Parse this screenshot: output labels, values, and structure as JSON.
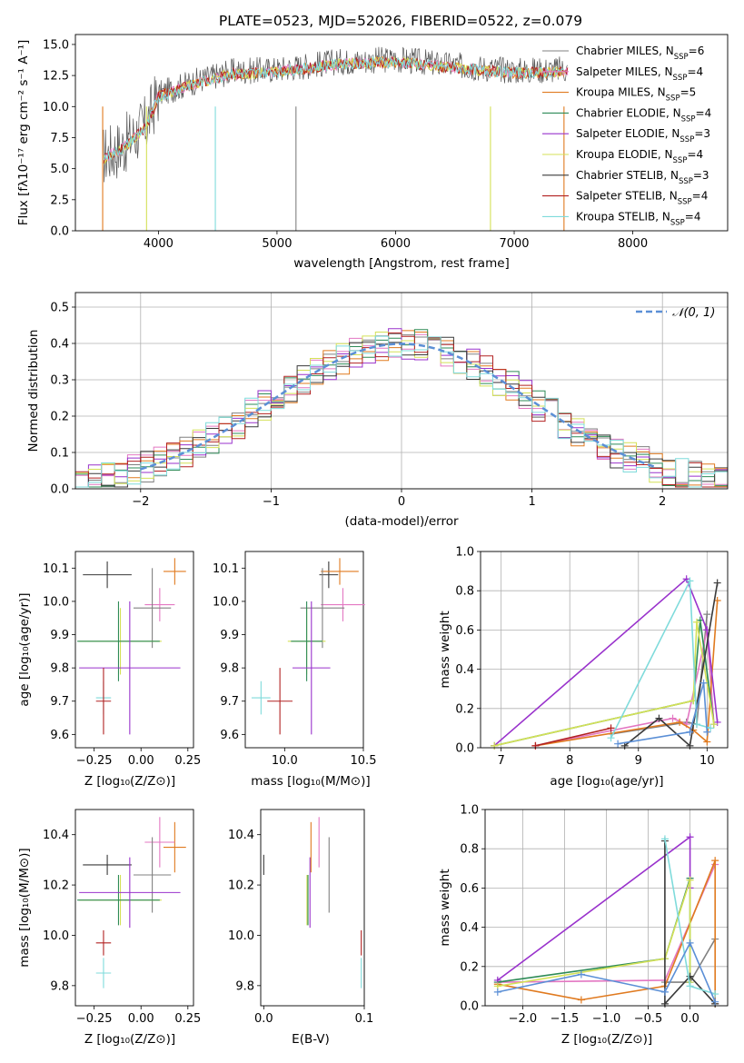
{
  "colors": {
    "Chabrier MILES": "#808080",
    "Salpeter MILES": "#e377c2",
    "Kroupa MILES": "#e07a1f",
    "Chabrier ELODIE": "#2e8b57",
    "Salpeter ELODIE": "#9932cc",
    "Kroupa ELODIE": "#d4e157",
    "Chabrier STELIB": "#3a3a3a",
    "Salpeter STELIB": "#b22222",
    "Kroupa STELIB": "#7fdbdb",
    "normal": "#5b8fd6",
    "blue": "#5b8fd6",
    "yellowgreen": "#b5e03a"
  },
  "chart_data": [
    {
      "id": "spectrum",
      "type": "line",
      "title": "PLATE=0523, MJD=52026, FIBERID=0522, z=0.079",
      "xlabel": "wavelength [Angstrom, rest frame]",
      "ylabel": "Flux [fλ10⁻¹⁷ erg cm⁻² s⁻¹ A⁻¹]",
      "xlim": [
        3300,
        8800
      ],
      "ylim": [
        0,
        15.8
      ],
      "xticks": [
        "4000",
        "5000",
        "6000",
        "7000",
        "8000"
      ],
      "yticks": [
        "0.0",
        "2.5",
        "5.0",
        "7.5",
        "10.0",
        "12.5",
        "15.0"
      ],
      "grid": false,
      "legend_position": "top-right",
      "legend": [
        {
          "name": "Chabrier MILES",
          "suffix": "6"
        },
        {
          "name": "Salpeter MILES",
          "suffix": "4"
        },
        {
          "name": "Kroupa MILES",
          "suffix": "5"
        },
        {
          "name": "Chabrier ELODIE",
          "suffix": "4"
        },
        {
          "name": "Salpeter ELODIE",
          "suffix": "3"
        },
        {
          "name": "Kroupa ELODIE",
          "suffix": "4"
        },
        {
          "name": "Chabrier STELIB",
          "suffix": "3"
        },
        {
          "name": "Salpeter STELIB",
          "suffix": "4"
        },
        {
          "name": "Kroupa STELIB",
          "suffix": "4"
        }
      ],
      "continuum": [
        [
          3530,
          6.0
        ],
        [
          3700,
          6.8
        ],
        [
          3900,
          8.6
        ],
        [
          4000,
          11.0
        ],
        [
          4300,
          12.0
        ],
        [
          4600,
          12.8
        ],
        [
          5000,
          13.0
        ],
        [
          5500,
          13.6
        ],
        [
          6000,
          13.8
        ],
        [
          6500,
          13.3
        ],
        [
          7000,
          12.9
        ],
        [
          7500,
          13.0
        ],
        [
          8000,
          12.8
        ],
        [
          8500,
          12.5
        ],
        [
          8700,
          12.4
        ]
      ],
      "data_range": [
        3530,
        8700
      ]
    },
    {
      "id": "residuals",
      "type": "histogram",
      "xlabel": "(data-model)/error",
      "ylabel": "Normed distribution",
      "xlim": [
        -2.5,
        2.5
      ],
      "ylim": [
        0,
        0.54
      ],
      "xticks": [
        "−2",
        "−1",
        "0",
        "1",
        "2"
      ],
      "yticks": [
        "0.0",
        "0.1",
        "0.2",
        "0.3",
        "0.4",
        "0.5"
      ],
      "grid": true,
      "legend_label": "𝒩(0, 1)",
      "legend_position": "top-right",
      "bin_width": 0.1,
      "reference_curve": "normal pdf, mean 0, sigma 1"
    },
    {
      "id": "age_vs_Z",
      "type": "errorbar",
      "xlabel": "Z [log₁₀(Z/Z⊙)]",
      "ylabel": "age  [log₁₀(age/yr)]",
      "xlim": [
        -0.35,
        0.28
      ],
      "ylim": [
        9.56,
        10.15
      ],
      "xticks": [
        "−0.25",
        "0.00",
        "0.25"
      ],
      "yticks": [
        "9.6",
        "9.7",
        "9.8",
        "9.9",
        "10.0",
        "10.1"
      ],
      "points": [
        {
          "model": "Chabrier STELIB",
          "x": -0.18,
          "xerr": 0.13,
          "y": 10.08,
          "yerr": 0.04
        },
        {
          "model": "Kroupa MILES",
          "x": 0.18,
          "xerr": 0.06,
          "y": 10.09,
          "yerr": 0.04
        },
        {
          "model": "Salpeter MILES",
          "x": 0.1,
          "xerr": 0.08,
          "y": 9.99,
          "yerr": 0.05
        },
        {
          "model": "Chabrier MILES",
          "x": 0.06,
          "xerr": 0.1,
          "y": 9.98,
          "yerr": 0.12
        },
        {
          "model": "Kroupa ELODIE",
          "x": -0.11,
          "xerr": 0.22,
          "y": 9.88,
          "yerr": 0.1
        },
        {
          "model": "Chabrier ELODIE",
          "x": -0.12,
          "xerr": 0.22,
          "y": 9.88,
          "yerr": 0.12
        },
        {
          "model": "Salpeter ELODIE",
          "x": -0.06,
          "xerr": 0.27,
          "y": 9.8,
          "yerr": 0.2
        },
        {
          "model": "Kroupa STELIB",
          "x": -0.2,
          "xerr": 0.04,
          "y": 9.71,
          "yerr": 0.05
        },
        {
          "model": "Salpeter STELIB",
          "x": -0.2,
          "xerr": 0.04,
          "y": 9.7,
          "yerr": 0.1
        }
      ]
    },
    {
      "id": "age_vs_mass",
      "type": "errorbar",
      "xlabel": "mass [log₁₀(M/M⊙)]",
      "ylabel": "",
      "xlim": [
        9.75,
        10.5
      ],
      "ylim": [
        9.56,
        10.15
      ],
      "xticks": [
        "10.0",
        "10.5"
      ],
      "yticks": [
        "9.6",
        "9.7",
        "9.8",
        "9.9",
        "10.0",
        "10.1"
      ],
      "points": [
        {
          "model": "Chabrier STELIB",
          "x": 10.28,
          "xerr": 0.06,
          "y": 10.08,
          "yerr": 0.04
        },
        {
          "model": "Kroupa MILES",
          "x": 10.35,
          "xerr": 0.12,
          "y": 10.09,
          "yerr": 0.04
        },
        {
          "model": "Salpeter MILES",
          "x": 10.37,
          "xerr": 0.14,
          "y": 9.99,
          "yerr": 0.05
        },
        {
          "model": "Chabrier MILES",
          "x": 10.24,
          "xerr": 0.14,
          "y": 9.98,
          "yerr": 0.12
        },
        {
          "model": "Kroupa ELODIE",
          "x": 10.14,
          "xerr": 0.12,
          "y": 9.88,
          "yerr": 0.1
        },
        {
          "model": "Chabrier ELODIE",
          "x": 10.14,
          "xerr": 0.1,
          "y": 9.88,
          "yerr": 0.12
        },
        {
          "model": "Salpeter ELODIE",
          "x": 10.17,
          "xerr": 0.12,
          "y": 9.8,
          "yerr": 0.2
        },
        {
          "model": "Kroupa STELIB",
          "x": 9.85,
          "xerr": 0.06,
          "y": 9.71,
          "yerr": 0.05
        },
        {
          "model": "Salpeter STELIB",
          "x": 9.97,
          "xerr": 0.08,
          "y": 9.7,
          "yerr": 0.1
        }
      ]
    },
    {
      "id": "weight_vs_age",
      "type": "line",
      "xlabel": "age  [log₁₀(age/yr)]",
      "ylabel": "mass weight",
      "xlim": [
        6.7,
        10.3
      ],
      "ylim": [
        0,
        1
      ],
      "xticks": [
        "7",
        "8",
        "9",
        "10"
      ],
      "yticks": [
        "0.0",
        "0.2",
        "0.4",
        "0.6",
        "0.8",
        "1.0"
      ],
      "grid": true,
      "series": [
        {
          "model": "Chabrier MILES",
          "x": [
            8.6,
            9.7,
            9.85,
            10.0
          ],
          "y": [
            0.07,
            0.13,
            0.12,
            0.68
          ]
        },
        {
          "model": "Salpeter MILES",
          "x": [
            7.5,
            9.5,
            9.7,
            10.0,
            10.1
          ],
          "y": [
            0.01,
            0.15,
            0.12,
            0.6,
            0.12
          ]
        },
        {
          "model": "Kroupa MILES",
          "x": [
            7.5,
            9.6,
            9.8,
            10.0,
            10.15
          ],
          "y": [
            0.01,
            0.13,
            0.09,
            0.03,
            0.75
          ]
        },
        {
          "model": "Chabrier ELODIE",
          "x": [
            6.9,
            9.8,
            9.9,
            10.1
          ],
          "y": [
            0.01,
            0.24,
            0.65,
            0.12
          ]
        },
        {
          "model": "Salpeter ELODIE",
          "x": [
            6.9,
            9.7,
            10.0,
            10.15
          ],
          "y": [
            0.01,
            0.86,
            0.6,
            0.13
          ]
        },
        {
          "model": "Kroupa ELODIE",
          "x": [
            6.9,
            9.8,
            9.85,
            10.1
          ],
          "y": [
            0.01,
            0.24,
            0.64,
            0.12
          ]
        },
        {
          "model": "Chabrier STELIB",
          "x": [
            8.8,
            9.3,
            9.75,
            10.15
          ],
          "y": [
            0.01,
            0.15,
            0.01,
            0.84
          ]
        },
        {
          "model": "Salpeter STELIB",
          "x": [
            7.5,
            8.6
          ],
          "y": [
            0.01,
            0.1
          ]
        },
        {
          "model": "Kroupa STELIB",
          "x": [
            8.6,
            9.75,
            9.85,
            10.05
          ],
          "y": [
            0.05,
            0.85,
            0.12,
            0.1
          ]
        },
        {
          "model": "blue",
          "x": [
            8.7,
            9.75,
            9.95,
            10.0
          ],
          "y": [
            0.02,
            0.08,
            0.33,
            0.08
          ]
        }
      ]
    },
    {
      "id": "mass_vs_Z",
      "type": "errorbar",
      "xlabel": "Z [log₁₀(Z/Z⊙)]",
      "ylabel": "mass [log₁₀(M/M⊙)]",
      "xlim": [
        -0.35,
        0.28
      ],
      "ylim": [
        9.72,
        10.5
      ],
      "xticks": [
        "−0.25",
        "0.00",
        "0.25"
      ],
      "yticks": [
        "9.8",
        "10.0",
        "10.2",
        "10.4"
      ],
      "points": [
        {
          "model": "Chabrier STELIB",
          "x": -0.18,
          "xerr": 0.13,
          "y": 10.28,
          "yerr": 0.04
        },
        {
          "model": "Kroupa MILES",
          "x": 0.18,
          "xerr": 0.06,
          "y": 10.35,
          "yerr": 0.1
        },
        {
          "model": "Salpeter MILES",
          "x": 0.1,
          "xerr": 0.08,
          "y": 10.37,
          "yerr": 0.1
        },
        {
          "model": "Chabrier MILES",
          "x": 0.06,
          "xerr": 0.1,
          "y": 10.24,
          "yerr": 0.15
        },
        {
          "model": "Kroupa ELODIE",
          "x": -0.11,
          "xerr": 0.22,
          "y": 10.14,
          "yerr": 0.1
        },
        {
          "model": "Chabrier ELODIE",
          "x": -0.12,
          "xerr": 0.22,
          "y": 10.14,
          "yerr": 0.1
        },
        {
          "model": "Salpeter ELODIE",
          "x": -0.06,
          "xerr": 0.27,
          "y": 10.17,
          "yerr": 0.14
        },
        {
          "model": "Kroupa STELIB",
          "x": -0.2,
          "xerr": 0.04,
          "y": 9.85,
          "yerr": 0.06
        },
        {
          "model": "Salpeter STELIB",
          "x": -0.2,
          "xerr": 0.04,
          "y": 9.97,
          "yerr": 0.05
        }
      ]
    },
    {
      "id": "mass_vs_ebv",
      "type": "errorbar",
      "xlabel": "E(B-V)",
      "ylabel": "",
      "xlim": [
        -0.003,
        0.1
      ],
      "ylim": [
        9.72,
        10.5
      ],
      "xticks": [
        "0.0",
        "0.1"
      ],
      "yticks": [
        "9.8",
        "10.0",
        "10.2",
        "10.4"
      ],
      "points": [
        {
          "model": "Chabrier STELIB",
          "x": 0.0,
          "y": 10.28,
          "yerr": 0.04
        },
        {
          "model": "Salpeter MILES",
          "x": 0.055,
          "y": 10.37,
          "yerr": 0.1
        },
        {
          "model": "Chabrier MILES",
          "x": 0.065,
          "y": 10.24,
          "yerr": 0.15
        },
        {
          "model": "Kroupa ELODIE",
          "x": 0.043,
          "y": 10.14,
          "yerr": 0.1
        },
        {
          "model": "Chabrier ELODIE",
          "x": 0.044,
          "y": 10.14,
          "yerr": 0.1
        },
        {
          "model": "Salpeter ELODIE",
          "x": 0.046,
          "y": 10.17,
          "yerr": 0.14
        },
        {
          "model": "Kroupa MILES",
          "x": 0.047,
          "y": 10.35,
          "yerr": 0.1
        },
        {
          "model": "Kroupa STELIB",
          "x": 0.097,
          "y": 9.85,
          "yerr": 0.06
        },
        {
          "model": "Salpeter STELIB",
          "x": 0.097,
          "y": 9.97,
          "yerr": 0.05
        }
      ]
    },
    {
      "id": "weight_vs_Z",
      "type": "line",
      "xlabel": "Z [log₁₀(Z/Z⊙)]",
      "ylabel": "mass weight",
      "xlim": [
        -2.45,
        0.45
      ],
      "ylim": [
        0,
        1
      ],
      "xticks": [
        "−2.0",
        "−1.5",
        "−1.0",
        "−0.5",
        "0.0"
      ],
      "yticks": [
        "0.0",
        "0.2",
        "0.4",
        "0.6",
        "0.8",
        "1.0"
      ],
      "grid": true,
      "series": [
        {
          "model": "Chabrier MILES",
          "x": [
            -0.3,
            0.0,
            0.3
          ],
          "y": [
            0.12,
            0.12,
            0.34
          ]
        },
        {
          "model": "Salpeter MILES",
          "x": [
            -2.3,
            -0.3,
            0.3
          ],
          "y": [
            0.12,
            0.13,
            0.72
          ]
        },
        {
          "model": "Kroupa MILES",
          "x": [
            -2.3,
            -1.3,
            -0.3,
            0.3,
            0.3
          ],
          "y": [
            0.11,
            0.03,
            0.1,
            0.74,
            0.01
          ]
        },
        {
          "model": "Chabrier ELODIE",
          "x": [
            -2.3,
            -0.3,
            0.0,
            0.0
          ],
          "y": [
            0.12,
            0.24,
            0.65,
            0.12
          ]
        },
        {
          "model": "Salpeter ELODIE",
          "x": [
            -2.3,
            0.0,
            0.0
          ],
          "y": [
            0.13,
            0.86,
            0.6
          ]
        },
        {
          "model": "Kroupa ELODIE",
          "x": [
            -2.3,
            -0.3,
            0.0,
            0.0
          ],
          "y": [
            0.1,
            0.24,
            0.64,
            0.12
          ]
        },
        {
          "model": "Chabrier STELIB",
          "x": [
            -0.3,
            -0.3,
            0.0,
            0.3
          ],
          "y": [
            0.84,
            0.01,
            0.15,
            0.01
          ]
        },
        {
          "model": "Kroupa STELIB",
          "x": [
            -0.3,
            0.0,
            0.3
          ],
          "y": [
            0.85,
            0.1,
            0.06
          ]
        },
        {
          "model": "blue",
          "x": [
            -2.3,
            -1.3,
            -0.3,
            0.0,
            0.3
          ],
          "y": [
            0.07,
            0.16,
            0.07,
            0.32,
            0.02
          ]
        }
      ]
    }
  ]
}
